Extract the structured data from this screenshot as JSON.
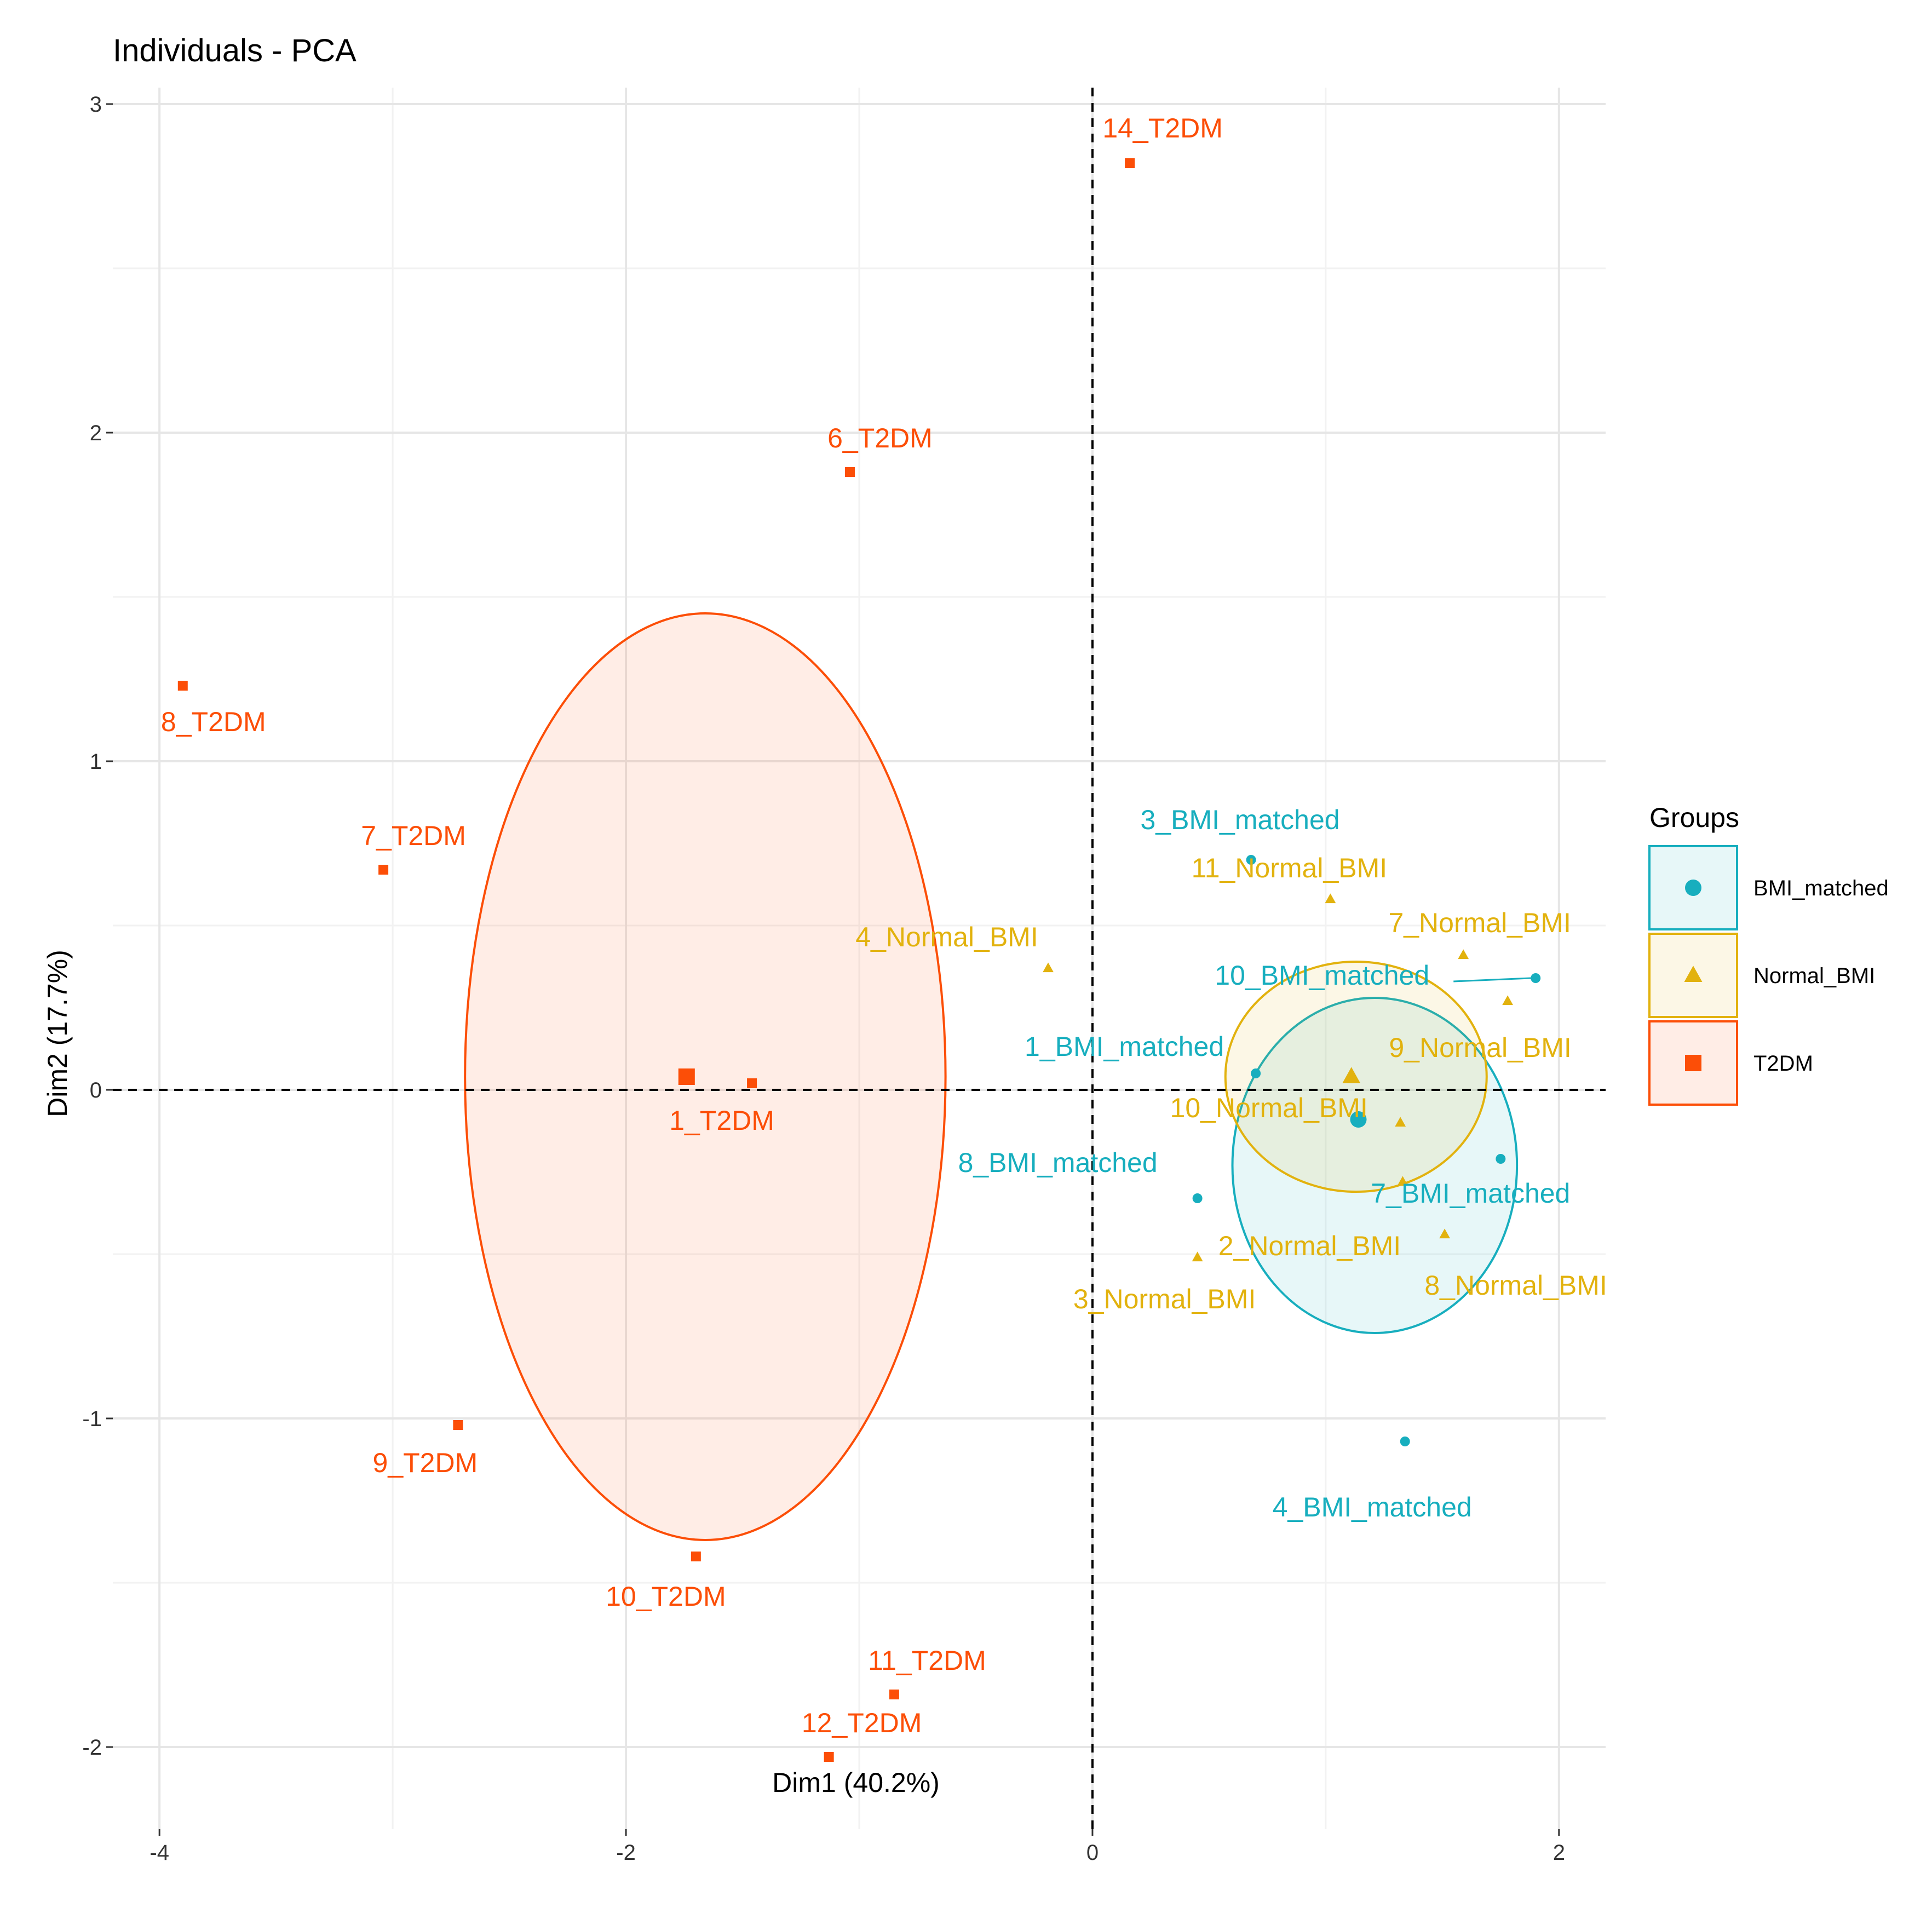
{
  "chart_data": {
    "type": "scatter",
    "title": "Individuals - PCA",
    "xlabel": "Dim1 (40.2%)",
    "ylabel": "Dim2 (17.7%)",
    "xlim": [
      -4.2,
      2.2
    ],
    "ylim": [
      -2.25,
      3.05
    ],
    "xticks": [
      -4,
      -2,
      0,
      2
    ],
    "yticks": [
      -2,
      -1,
      0,
      1,
      2,
      3
    ],
    "xtick_labels": [
      "-4",
      "-2",
      "0",
      "2"
    ],
    "ytick_labels": [
      "-2",
      "-1",
      "0",
      "1",
      "2",
      "3"
    ],
    "grid": true,
    "reference_lines": {
      "x": 0,
      "y": 0,
      "style": "dashed"
    },
    "legend": {
      "title": "Groups",
      "position": "right",
      "entries": [
        "BMI_matched",
        "Normal_BMI",
        "T2DM"
      ]
    },
    "series": [
      {
        "name": "BMI_matched",
        "color": "#17AEBE",
        "shape": "circle",
        "points": [
          {
            "label": "3_BMI_matched",
            "x": 0.68,
            "y": 0.7
          },
          {
            "label": "10_BMI_matched",
            "x": 1.9,
            "y": 0.34
          },
          {
            "label": "1_BMI_matched",
            "x": 0.7,
            "y": 0.05
          },
          {
            "label": "8_BMI_matched",
            "x": 0.45,
            "y": -0.33
          },
          {
            "label": "7_BMI_matched",
            "x": 1.75,
            "y": -0.21
          },
          {
            "label": "4_BMI_matched",
            "x": 1.34,
            "y": -1.07
          }
        ],
        "centroid": {
          "x": 1.14,
          "y": -0.09
        },
        "ellipse": {
          "center": [
            1.21,
            -0.23
          ],
          "rx": 0.61,
          "ry": 0.51
        }
      },
      {
        "name": "Normal_BMI",
        "color": "#E2B20E",
        "shape": "triangle",
        "points": [
          {
            "label": "11_Normal_BMI",
            "x": 1.02,
            "y": 0.58
          },
          {
            "label": "4_Normal_BMI",
            "x": -0.19,
            "y": 0.37
          },
          {
            "label": "7_Normal_BMI",
            "x": 1.59,
            "y": 0.41
          },
          {
            "label": "9_Normal_BMI",
            "x": 1.78,
            "y": 0.27
          },
          {
            "label": "10_Normal_BMI",
            "x": 1.32,
            "y": -0.1
          },
          {
            "label": "2_Normal_BMI",
            "x": 1.33,
            "y": -0.28
          },
          {
            "label": "3_Normal_BMI",
            "x": 0.45,
            "y": -0.51
          },
          {
            "label": "8_Normal_BMI",
            "x": 1.51,
            "y": -0.44
          }
        ],
        "centroid": {
          "x": 1.11,
          "y": 0.04
        },
        "ellipse": {
          "center": [
            1.13,
            0.04
          ],
          "rx": 0.56,
          "ry": 0.35
        }
      },
      {
        "name": "T2DM",
        "color": "#FC4E07",
        "shape": "square",
        "points": [
          {
            "label": "14_T2DM",
            "x": 0.16,
            "y": 2.82
          },
          {
            "label": "6_T2DM",
            "x": -1.04,
            "y": 1.88
          },
          {
            "label": "8_T2DM",
            "x": -3.9,
            "y": 1.23
          },
          {
            "label": "7_T2DM",
            "x": -3.04,
            "y": 0.67
          },
          {
            "label": "1_T2DM",
            "x": -1.46,
            "y": 0.02
          },
          {
            "label": "9_T2DM",
            "x": -2.72,
            "y": -1.02
          },
          {
            "label": "10_T2DM",
            "x": -1.7,
            "y": -1.42
          },
          {
            "label": "11_T2DM",
            "x": -0.85,
            "y": -1.84
          },
          {
            "label": "12_T2DM",
            "x": -1.13,
            "y": -2.03
          }
        ],
        "centroid": {
          "x": -1.74,
          "y": 0.04
        },
        "ellipse": {
          "center": [
            -1.66,
            0.04
          ],
          "rx": 1.03,
          "ry": 1.41
        }
      }
    ]
  }
}
